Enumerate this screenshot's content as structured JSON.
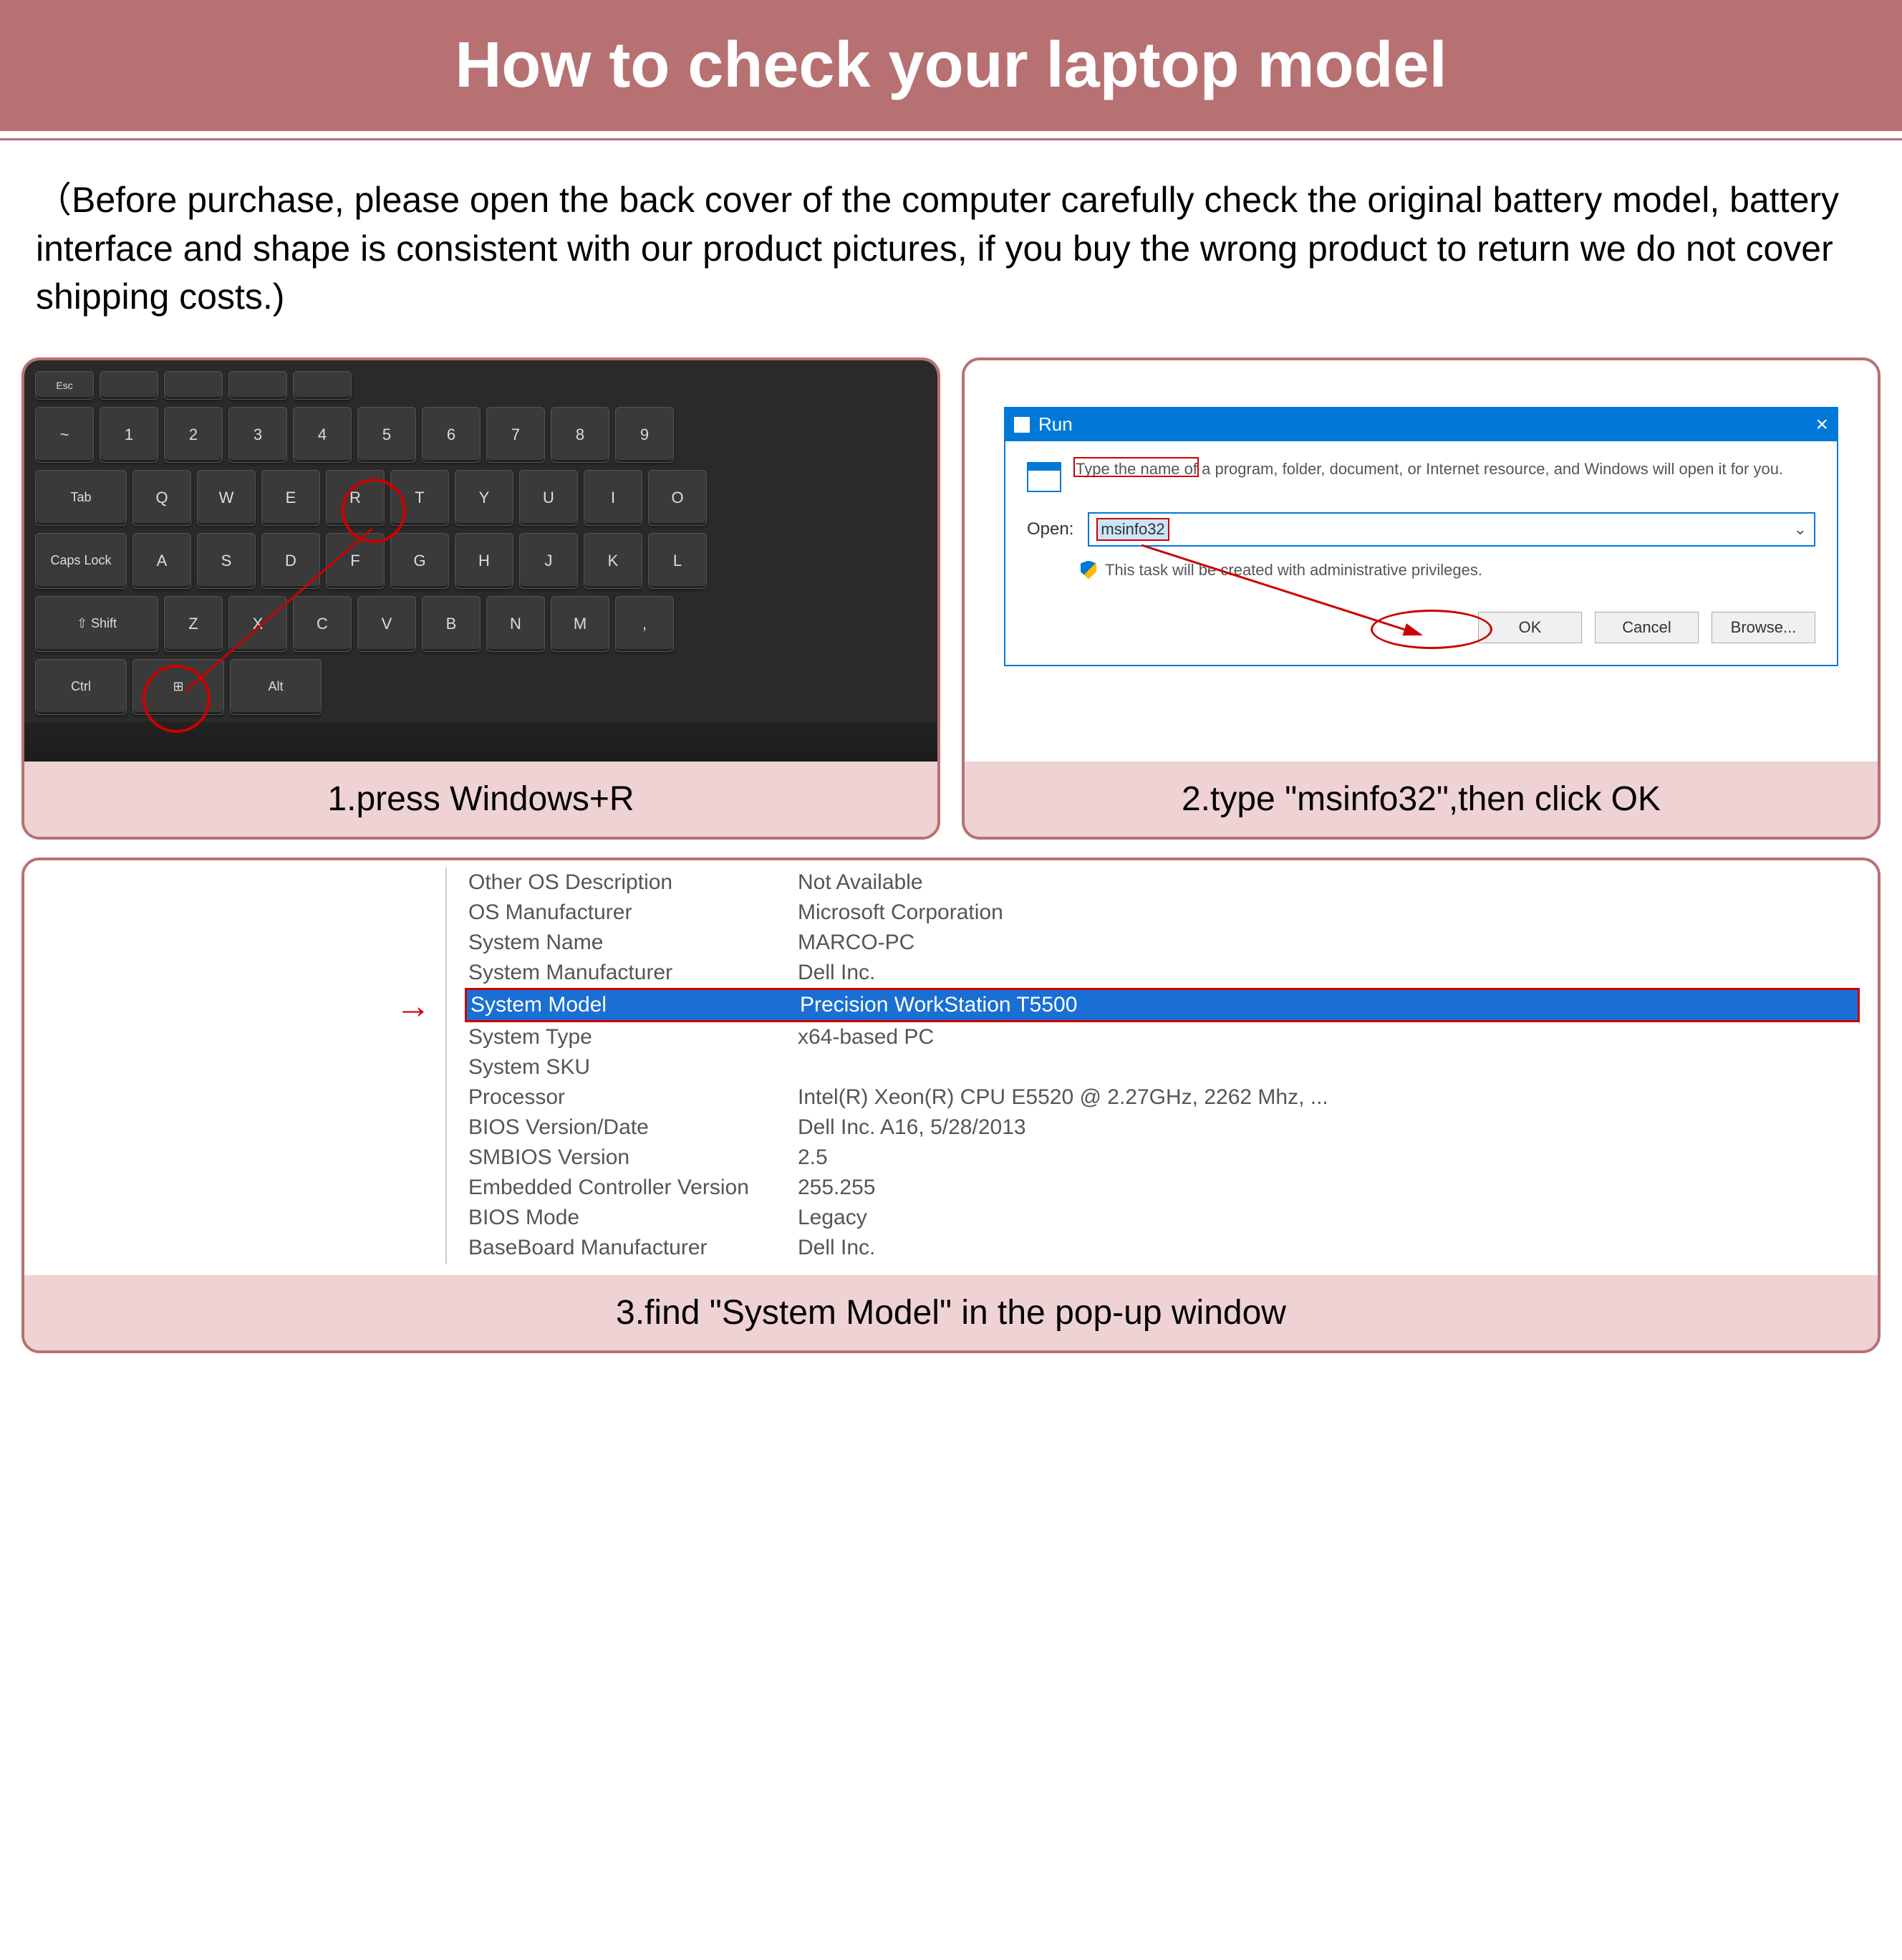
{
  "header": {
    "title": "How to check your laptop model",
    "banner_bg": "#b77173",
    "banner_fg": "#ffffff"
  },
  "intro": "（Before purchase, please open the back cover of the computer carefully check the original battery model, battery interface and shape is consistent with our product pictures, if you buy the wrong product to return we do not cover shipping costs.)",
  "panel1": {
    "caption": "1.press Windows+R",
    "keys_row0": [
      "Esc",
      "",
      "",
      "",
      ""
    ],
    "keys_row1": [
      "~",
      "1",
      "2",
      "3",
      "4",
      "5",
      "6",
      "7",
      "8",
      "9"
    ],
    "keys_row2_first": "Tab",
    "keys_row2": [
      "Q",
      "W",
      "E",
      "R",
      "T",
      "Y",
      "U",
      "I",
      "O"
    ],
    "keys_row3_first": "Caps Lock",
    "keys_row3": [
      "A",
      "S",
      "D",
      "F",
      "G",
      "H",
      "J",
      "K",
      "L"
    ],
    "keys_row4_first": "⇧ Shift",
    "keys_row4": [
      "Z",
      "X",
      "C",
      "V",
      "B",
      "N",
      "M",
      ","
    ],
    "keys_row5": [
      "Ctrl",
      "⊞",
      "Alt"
    ],
    "circle_color": "#cc0000"
  },
  "panel2": {
    "caption": "2.type \"msinfo32\",then click OK",
    "run_title": "Run",
    "run_close": "×",
    "run_desc": "Type the name of a program, folder, document, or Internet resource, and Windows will open it for you.",
    "open_label": "Open:",
    "input_value": "msinfo32",
    "admin_text": "This task will be created with administrative privileges.",
    "btn_ok": "OK",
    "btn_cancel": "Cancel",
    "btn_browse": "Browse...",
    "titlebar_bg": "#0078d7",
    "highlight_red": "#cc0000"
  },
  "panel3": {
    "caption": "3.find \"System Model\" in the pop-up window",
    "rows": [
      {
        "label": "Other OS Description",
        "value": "Not Available"
      },
      {
        "label": "OS Manufacturer",
        "value": "Microsoft Corporation"
      },
      {
        "label": "System Name",
        "value": "MARCO-PC"
      },
      {
        "label": "System Manufacturer",
        "value": "Dell Inc."
      },
      {
        "label": "System Model",
        "value": "Precision WorkStation T5500",
        "highlighted": true
      },
      {
        "label": "System Type",
        "value": "x64-based PC"
      },
      {
        "label": "System SKU",
        "value": ""
      },
      {
        "label": "Processor",
        "value": "Intel(R) Xeon(R) CPU          E5520  @ 2.27GHz, 2262 Mhz, ..."
      },
      {
        "label": "BIOS Version/Date",
        "value": "Dell Inc. A16, 5/28/2013"
      },
      {
        "label": "SMBIOS Version",
        "value": "2.5"
      },
      {
        "label": "Embedded Controller Version",
        "value": "255.255"
      },
      {
        "label": "BIOS Mode",
        "value": "Legacy"
      },
      {
        "label": "BaseBoard Manufacturer",
        "value": "Dell Inc."
      }
    ],
    "highlight_bg": "#1a6fd4",
    "arrow_color": "#cc0000"
  },
  "colors": {
    "caption_bg": "#efd2d3",
    "border": "#b77173"
  }
}
